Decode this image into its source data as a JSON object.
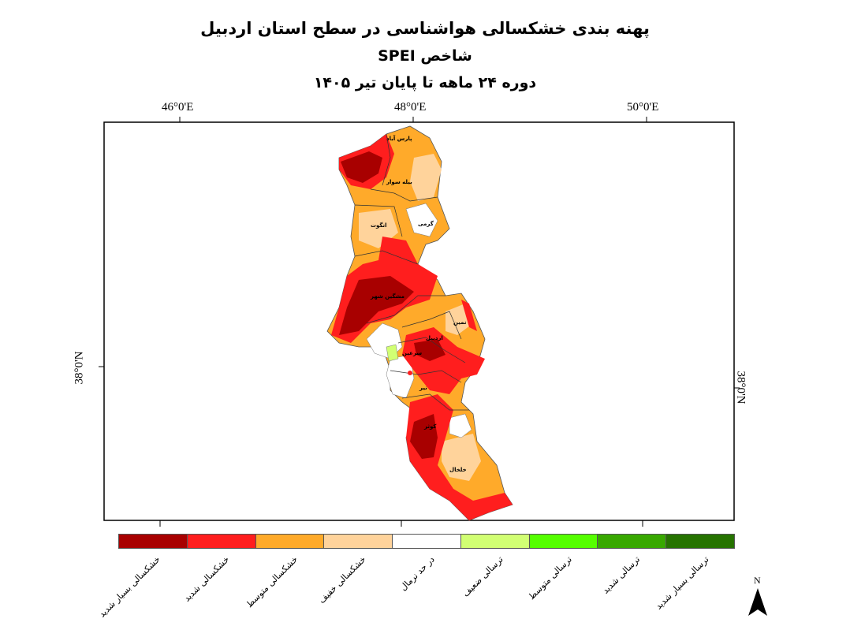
{
  "title": {
    "line1": "پهنه بندی خشکسالی هواشناسی در سطح استان اردبیل",
    "line2": "شاخص SPEI",
    "line3": "دوره  ۲۴  ماهه تا پایان  تیر ۱۴۰۵"
  },
  "axes": {
    "top_ticks": [
      "46°0'E",
      "48°0'E",
      "50°0'E"
    ],
    "left_tick": "38°0'N",
    "right_tick": "38°0'N"
  },
  "map_labels": {
    "parsabad": "پارس آباد",
    "bilesavar": "بیله سوار",
    "germi": "گرمی",
    "ungut": "انگوت",
    "meshginshahr": "مشگین شهر",
    "namin": "نمین",
    "ardabil": "اردبیل",
    "sareyn": "سرعین",
    "nir": "نیر",
    "kowsar": "کوثر",
    "khalkhal": "خلخال"
  },
  "legend": [
    {
      "label": "خشکسالی بسیار شدید",
      "color": "#a80000"
    },
    {
      "label": "خشکسالی شدید",
      "color": "#ff1e1e"
    },
    {
      "label": "خشکسالی متوسط",
      "color": "#ffaa2a"
    },
    {
      "label": "خشکسالی خفیف",
      "color": "#ffd39b"
    },
    {
      "label": "در حد نرمال",
      "color": "#ffffff"
    },
    {
      "label": "ترسالی ضعیف",
      "color": "#d1ff73"
    },
    {
      "label": "ترسالی متوسط",
      "color": "#55ff00"
    },
    {
      "label": "ترسالی شدید",
      "color": "#38a800"
    },
    {
      "label": "ترسالی بسیار شدید",
      "color": "#267300"
    }
  ],
  "north_arrow": "N"
}
